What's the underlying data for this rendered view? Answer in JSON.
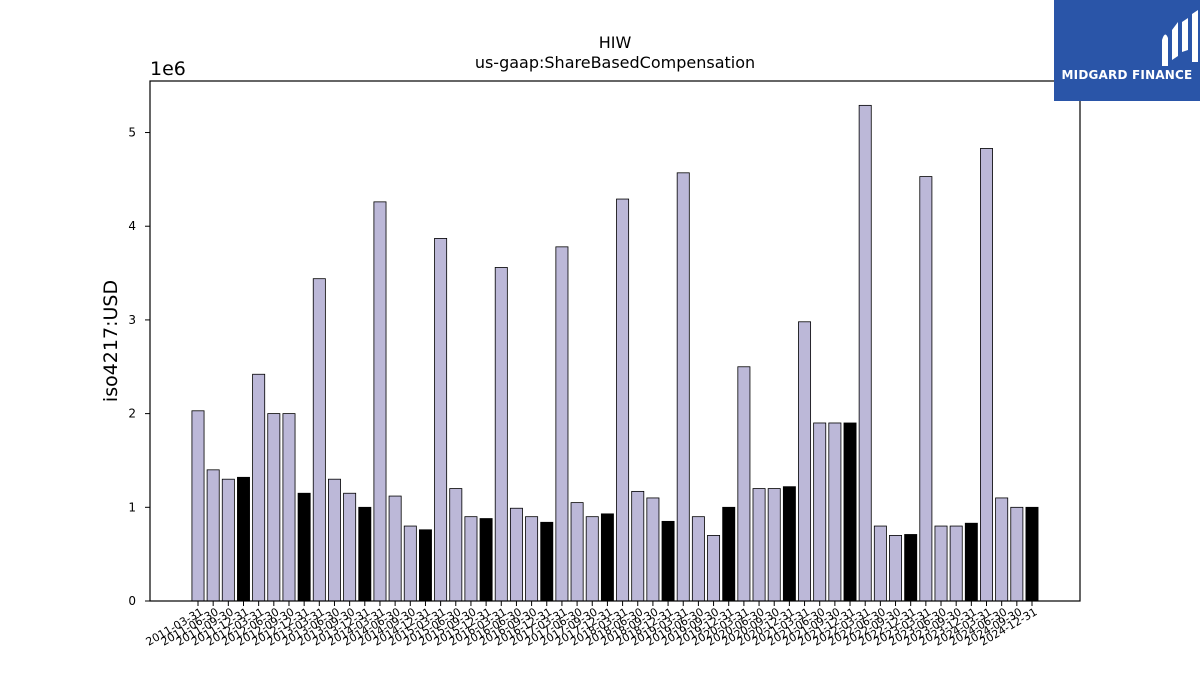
{
  "brand": {
    "name": "MIDGARD FINANCE",
    "bg_color": "#2a55a8",
    "icon": "midgard-logo-icon"
  },
  "chart_data": {
    "type": "bar",
    "title": "HIW",
    "subtitle": "us-gaap:ShareBasedCompensation",
    "ylabel": "iso4217:USD",
    "xlabel": "",
    "y_scale_label": "1e6",
    "y_multiplier": 1000000,
    "ylim": [
      0,
      5.55
    ],
    "yticks": [
      0,
      1,
      2,
      3,
      4,
      5
    ],
    "grid": false,
    "legend": "none",
    "colors": {
      "default": "#bcb8d8",
      "highlight": "#000000",
      "edge": "#000000"
    },
    "categories": [
      "2011-03-31",
      "2011-06-30",
      "2011-09-30",
      "2011-12-31",
      "2012-03-31",
      "2012-06-30",
      "2012-09-30",
      "2012-12-31",
      "2013-03-31",
      "2013-06-30",
      "2013-09-30",
      "2013-12-31",
      "2014-03-31",
      "2014-06-30",
      "2014-09-30",
      "2014-12-31",
      "2015-03-31",
      "2015-06-30",
      "2015-09-30",
      "2015-12-31",
      "2016-03-31",
      "2016-06-30",
      "2016-09-30",
      "2016-12-31",
      "2017-03-31",
      "2017-06-30",
      "2017-09-30",
      "2017-12-31",
      "2018-03-31",
      "2018-06-30",
      "2018-09-30",
      "2018-12-31",
      "2019-03-31",
      "2019-06-30",
      "2019-09-30",
      "2019-12-31",
      "2020-03-31",
      "2020-06-30",
      "2020-09-30",
      "2020-12-31",
      "2021-03-31",
      "2021-06-30",
      "2021-09-30",
      "2021-12-31",
      "2022-03-31",
      "2022-06-30",
      "2022-09-30",
      "2022-12-31",
      "2023-03-31",
      "2023-06-30",
      "2023-09-30",
      "2023-12-31",
      "2024-03-31",
      "2024-06-30",
      "2024-09-30",
      "2024-12-31"
    ],
    "values": [
      2.03,
      1.4,
      1.3,
      1.32,
      2.42,
      2.0,
      2.0,
      1.15,
      3.44,
      1.3,
      1.15,
      1.0,
      4.26,
      1.12,
      0.8,
      0.76,
      3.87,
      1.2,
      0.9,
      0.88,
      3.56,
      0.99,
      0.9,
      0.84,
      3.78,
      1.05,
      0.9,
      0.93,
      4.29,
      1.17,
      1.1,
      0.85,
      4.57,
      0.9,
      0.7,
      1.0,
      2.5,
      1.2,
      1.2,
      1.22,
      2.98,
      1.9,
      1.9,
      1.9,
      5.29,
      0.8,
      0.7,
      0.71,
      4.53,
      0.8,
      0.8,
      0.83,
      4.83,
      1.1,
      1.0,
      1.0
    ],
    "highlight": [
      false,
      false,
      false,
      true,
      false,
      false,
      false,
      true,
      false,
      false,
      false,
      true,
      false,
      false,
      false,
      true,
      false,
      false,
      false,
      true,
      false,
      false,
      false,
      true,
      false,
      false,
      false,
      true,
      false,
      false,
      false,
      true,
      false,
      false,
      false,
      true,
      false,
      false,
      false,
      true,
      false,
      false,
      false,
      true,
      false,
      false,
      false,
      true,
      false,
      false,
      false,
      true,
      false,
      false,
      false,
      true
    ]
  }
}
